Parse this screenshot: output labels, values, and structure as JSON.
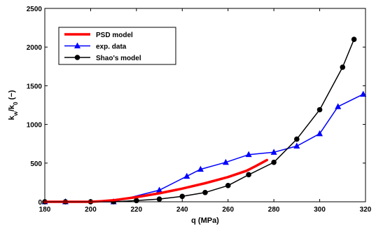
{
  "chart_data": {
    "type": "line",
    "xlabel": "q (MPa)",
    "ylabel": {
      "base": "k",
      "sub1": "w",
      "mid": "/k",
      "sub2": "0",
      "tail": " (−)"
    },
    "xlim": [
      180,
      320
    ],
    "ylim": [
      0,
      2500
    ],
    "xticks": [
      "180",
      "200",
      "220",
      "240",
      "260",
      "280",
      "300",
      "320"
    ],
    "yticks": [
      "0",
      "500",
      "1000",
      "1500",
      "2000",
      "2500"
    ],
    "grid": false,
    "legend_position": "top-left",
    "series": [
      {
        "name": "PSD model",
        "color": "#ff0000",
        "marker": "none",
        "x": [
          180,
          190,
          200,
          205,
          210,
          220,
          230,
          240,
          250,
          260,
          268,
          272,
          277
        ],
        "y": [
          0,
          0,
          0,
          8,
          20,
          60,
          110,
          170,
          240,
          320,
          400,
          460,
          540
        ]
      },
      {
        "name": "exp. data",
        "color": "#0000ff",
        "marker": "triangle",
        "x": [
          180,
          189,
          210,
          230,
          242,
          248,
          259,
          269,
          280,
          290,
          300,
          308,
          319
        ],
        "y": [
          0,
          0,
          0,
          150,
          330,
          420,
          510,
          610,
          640,
          720,
          880,
          1230,
          1390
        ]
      },
      {
        "name": "Shao's model",
        "color": "#000000",
        "marker": "circle",
        "x": [
          180,
          189,
          200,
          210,
          220,
          230,
          240,
          250,
          260,
          269,
          280,
          290,
          300,
          310,
          315
        ],
        "y": [
          0,
          0,
          0,
          0,
          15,
          35,
          70,
          120,
          210,
          350,
          510,
          810,
          1190,
          1740,
          2100
        ]
      }
    ]
  }
}
